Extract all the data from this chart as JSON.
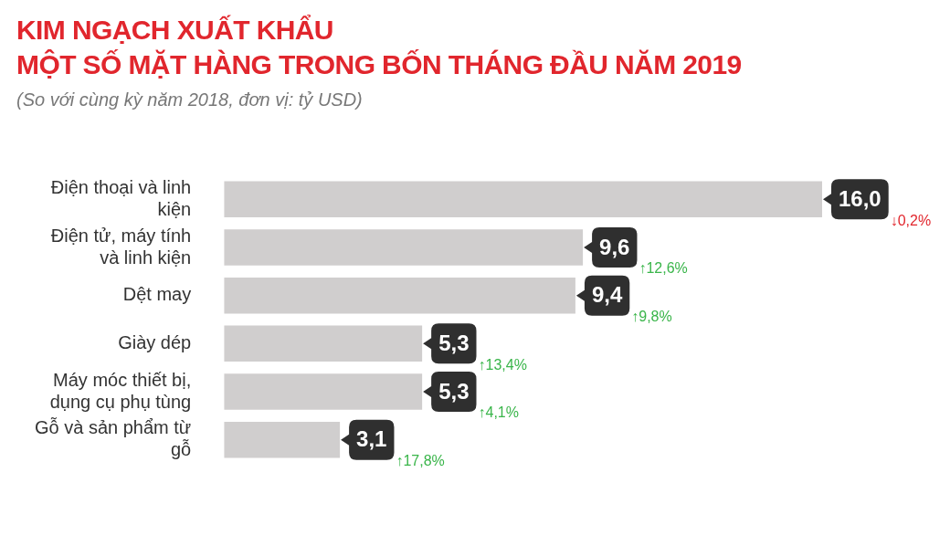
{
  "chart_data": {
    "type": "bar",
    "orientation": "horizontal",
    "title": "KIM NGẠCH XUẤT KHẨU\nMỘT SỐ MẶT HÀNG TRONG BỐN THÁNG ĐẦU NĂM 2019",
    "subtitle": "(So với cùng kỳ năm 2018, đơn vị: tỷ USD)",
    "categories": [
      "Điện thoại và linh kiện",
      "Điện tử, máy tính và linh kiện",
      "Dệt may",
      "Giày dép",
      "Máy móc thiết bị, dụng cụ phụ tùng",
      "Gỗ và sản phẩm từ gỗ"
    ],
    "values": [
      16.0,
      9.6,
      9.4,
      5.3,
      5.3,
      3.1
    ],
    "value_labels": [
      "16,0",
      "9,6",
      "9,4",
      "5,3",
      "5,3",
      "3,1"
    ],
    "color": "#d0cece",
    "annotations": [
      "↓0,2%",
      "↑12,6%",
      "↑9,8%",
      "↑13,4%",
      "↑4,1%",
      "↑17,8%"
    ]
  }
}
